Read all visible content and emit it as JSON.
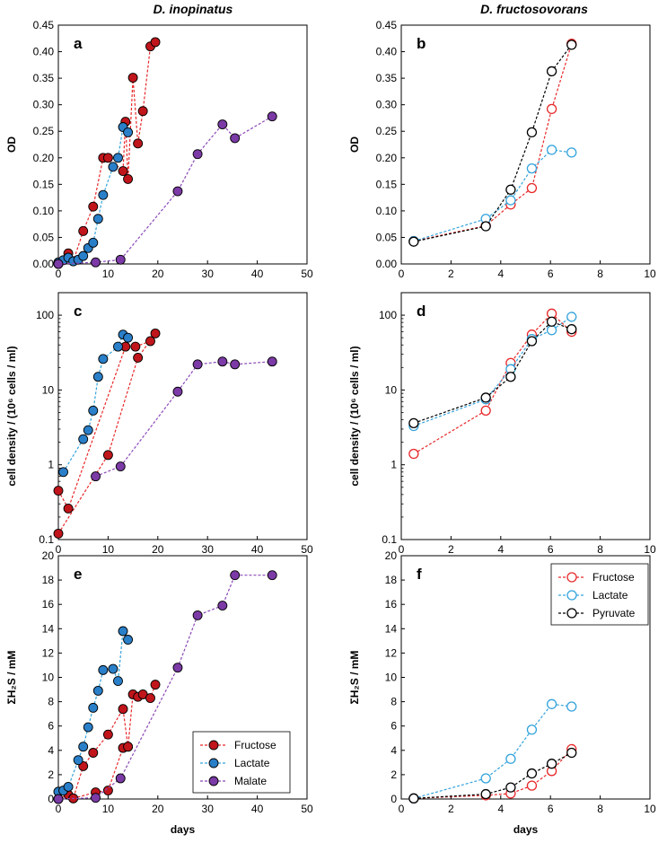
{
  "figure": {
    "left_title": "D. inopinatus",
    "right_title": "D. fructosovorans"
  },
  "colors": {
    "fructose_fill": "#c0151b",
    "fructose_line": "#e8282a",
    "lactate_fill": "#2a7fc9",
    "lactate_line": "#33a3dc",
    "malate_fill": "#7b3aa6",
    "malate_line": "#8a48b8",
    "pyruvate_line": "#000000"
  },
  "chart_data": [
    {
      "id": "a",
      "label": "a",
      "type": "line",
      "marker": "filled",
      "xlim": [
        0,
        50
      ],
      "xticks": [
        "0",
        "10",
        "20",
        "30",
        "40",
        "50"
      ],
      "ylim": [
        0,
        0.45
      ],
      "yticks": [
        "0.00",
        "0.05",
        "0.10",
        "0.15",
        "0.20",
        "0.25",
        "0.30",
        "0.35",
        "0.40",
        "0.45"
      ],
      "yscale": "linear",
      "ylabel": "OD",
      "xlabel": "",
      "series": [
        {
          "name": "Fructose",
          "color": "fructose",
          "x": [
            0,
            2,
            3,
            5,
            7,
            9,
            10,
            13,
            13.5,
            14,
            15,
            16,
            17,
            18.5,
            19.5
          ],
          "y": [
            0.0,
            0.02,
            0.005,
            0.062,
            0.108,
            0.2,
            0.2,
            0.175,
            0.268,
            0.16,
            0.351,
            0.227,
            0.288,
            0.41,
            0.418
          ]
        },
        {
          "name": "Fructose (2)",
          "color": "fructose",
          "x": [
            3.5,
            7,
            10,
            13,
            14.5,
            16,
            17,
            18.5,
            19.5
          ],
          "y": [
            0.0,
            0.02,
            0.018,
            0.0,
            0.0,
            0.0,
            0.0,
            0.0,
            0.0
          ],
          "hidden": true
        },
        {
          "name": "Lactate",
          "color": "lactate",
          "x": [
            0,
            1,
            2,
            3,
            4,
            5,
            6,
            7,
            8,
            9,
            11,
            12,
            13,
            14
          ],
          "y": [
            0.003,
            0.007,
            0.012,
            0.005,
            0.008,
            0.015,
            0.03,
            0.04,
            0.085,
            0.13,
            0.183,
            0.2,
            0.258,
            0.248
          ]
        },
        {
          "name": "Malate",
          "color": "malate",
          "x": [
            0,
            7.5,
            12.5,
            24,
            28,
            33,
            35.5,
            43
          ],
          "y": [
            0.0,
            0.003,
            0.008,
            0.137,
            0.207,
            0.263,
            0.237,
            0.278
          ]
        }
      ]
    },
    {
      "id": "b",
      "label": "b",
      "type": "line",
      "marker": "open",
      "xlim": [
        0,
        10
      ],
      "xticks": [
        "0",
        "2",
        "4",
        "6",
        "8",
        "10"
      ],
      "ylim": [
        0,
        0.45
      ],
      "yticks": [
        "0.00",
        "0.05",
        "0.10",
        "0.15",
        "0.20",
        "0.25",
        "0.30",
        "0.35",
        "0.40",
        "0.45"
      ],
      "yscale": "linear",
      "ylabel": "OD",
      "xlabel": "",
      "series": [
        {
          "name": "Fructose",
          "color": "fructose",
          "x": [
            0.5,
            3.4,
            4.4,
            5.25,
            6.05,
            6.85
          ],
          "y": [
            0.043,
            0.072,
            0.112,
            0.143,
            0.292,
            0.415
          ]
        },
        {
          "name": "Lactate",
          "color": "lactate",
          "x": [
            0.5,
            3.4,
            4.4,
            5.25,
            6.05,
            6.85
          ],
          "y": [
            0.043,
            0.085,
            0.12,
            0.18,
            0.215,
            0.21
          ]
        },
        {
          "name": "Pyruvate",
          "color": "pyruvate",
          "x": [
            0.5,
            3.4,
            4.4,
            5.25,
            6.05,
            6.85
          ],
          "y": [
            0.042,
            0.071,
            0.14,
            0.248,
            0.363,
            0.413
          ]
        }
      ]
    },
    {
      "id": "c",
      "label": "c",
      "type": "line",
      "marker": "filled",
      "xlim": [
        0,
        50
      ],
      "xticks": [
        "0",
        "10",
        "20",
        "30",
        "40",
        "50"
      ],
      "ylim": [
        0.1,
        200
      ],
      "yticks": [
        "0.1",
        "1",
        "10",
        "100"
      ],
      "ytick_values": [
        0.1,
        1,
        10,
        100
      ],
      "yscale": "log",
      "ylabel": "cell density / (10⁶ cells / ml)",
      "xlabel": "",
      "series": [
        {
          "name": "Fructose A",
          "color": "fructose",
          "x": [
            0,
            10,
            16,
            19.5
          ],
          "y": [
            0.12,
            1.35,
            27,
            57
          ]
        },
        {
          "name": "Fructose B",
          "color": "fructose",
          "x": [
            0,
            2,
            13.5,
            15.5,
            18.5
          ],
          "y": [
            0.45,
            0.26,
            38,
            38,
            45
          ]
        },
        {
          "name": "Lactate",
          "color": "lactate",
          "x": [
            1,
            5,
            6,
            7,
            8,
            9,
            12,
            13,
            14
          ],
          "y": [
            0.8,
            2.2,
            2.9,
            5.3,
            15,
            26,
            38,
            55,
            50
          ]
        },
        {
          "name": "Malate",
          "color": "malate",
          "x": [
            7.5,
            12.5,
            24,
            28,
            33,
            35.5,
            43
          ],
          "y": [
            0.7,
            0.95,
            9.5,
            22,
            24,
            22,
            24
          ]
        }
      ]
    },
    {
      "id": "d",
      "label": "d",
      "type": "line",
      "marker": "open",
      "xlim": [
        0,
        10
      ],
      "xticks": [
        "0",
        "2",
        "4",
        "6",
        "8",
        "10"
      ],
      "ylim": [
        0.1,
        200
      ],
      "yticks": [
        "0.1",
        "1",
        "10",
        "100"
      ],
      "ytick_values": [
        0.1,
        1,
        10,
        100
      ],
      "yscale": "log",
      "ylabel": "cell density / (10⁶ cells / ml)",
      "xlabel": "",
      "series": [
        {
          "name": "Fructose",
          "color": "fructose",
          "x": [
            0.5,
            3.4,
            4.4,
            5.25,
            6.05,
            6.85
          ],
          "y": [
            1.4,
            5.3,
            23,
            55,
            105,
            60
          ]
        },
        {
          "name": "Lactate",
          "color": "lactate",
          "x": [
            0.5,
            3.4,
            4.4,
            5.25,
            6.05,
            6.85
          ],
          "y": [
            3.3,
            7.5,
            19,
            48,
            63,
            95
          ]
        },
        {
          "name": "Pyruvate",
          "color": "pyruvate",
          "x": [
            0.5,
            3.4,
            4.4,
            5.25,
            6.05,
            6.85
          ],
          "y": [
            3.6,
            7.9,
            15,
            45,
            82,
            65
          ]
        }
      ]
    },
    {
      "id": "e",
      "label": "e",
      "type": "line",
      "marker": "filled",
      "xlim": [
        0,
        50
      ],
      "xticks": [
        "0",
        "10",
        "20",
        "30",
        "40",
        "50"
      ],
      "ylim": [
        0,
        20
      ],
      "yticks": [
        "0",
        "2",
        "4",
        "6",
        "8",
        "10",
        "12",
        "14",
        "16",
        "18",
        "20"
      ],
      "yscale": "linear",
      "ylabel": "ΣH₂S / mM",
      "xlabel": "days",
      "series": [
        {
          "name": "Fructose",
          "color": "fructose",
          "x": [
            0,
            2,
            3,
            5,
            7,
            10,
            13,
            14,
            15,
            16,
            17,
            18.5,
            19.5
          ],
          "y": [
            0.0,
            0.35,
            0.05,
            2.7,
            3.8,
            5.3,
            7.4,
            4.3,
            8.6,
            8.4,
            8.6,
            8.3,
            9.4
          ]
        },
        {
          "name": "Fructose (2)",
          "color": "fructose",
          "x": [
            3,
            7.5,
            10,
            13,
            14
          ],
          "y": [
            0.05,
            0.55,
            0.7,
            4.2,
            4.3
          ]
        },
        {
          "name": "Lactate",
          "color": "lactate",
          "x": [
            0,
            1,
            2,
            4,
            5,
            6,
            7,
            8,
            9,
            11,
            12,
            13,
            14
          ],
          "y": [
            0.6,
            0.7,
            1.0,
            3.2,
            4.3,
            5.9,
            7.5,
            8.9,
            10.6,
            10.7,
            9.7,
            13.8,
            13.1
          ]
        },
        {
          "name": "Malate",
          "color": "malate",
          "x": [
            0,
            7.5,
            12.5,
            24,
            28,
            33,
            35.5,
            43
          ],
          "y": [
            0.0,
            0.1,
            1.7,
            10.8,
            15.1,
            15.9,
            18.4,
            18.4
          ]
        }
      ],
      "legend": {
        "entries": [
          "Fructose",
          "Lactate",
          "Malate"
        ],
        "placement": "bottom-right"
      }
    },
    {
      "id": "f",
      "label": "f",
      "type": "line",
      "marker": "open",
      "xlim": [
        0,
        10
      ],
      "xticks": [
        "0",
        "2",
        "4",
        "6",
        "8",
        "10"
      ],
      "ylim": [
        0,
        20
      ],
      "yticks": [
        "0",
        "2",
        "4",
        "6",
        "8",
        "10",
        "12",
        "14",
        "16",
        "18",
        "20"
      ],
      "yscale": "linear",
      "ylabel": "ΣH₂S / mM",
      "xlabel": "days",
      "series": [
        {
          "name": "Fructose",
          "color": "fructose",
          "x": [
            0.5,
            3.4,
            4.4,
            5.25,
            6.05,
            6.85
          ],
          "y": [
            0.05,
            0.3,
            0.45,
            1.1,
            2.3,
            4.1
          ]
        },
        {
          "name": "Lactate",
          "color": "lactate",
          "x": [
            0.5,
            3.4,
            4.4,
            5.25,
            6.05,
            6.85
          ],
          "y": [
            0.05,
            1.7,
            3.3,
            5.7,
            7.8,
            7.6
          ]
        },
        {
          "name": "Pyruvate",
          "color": "pyruvate",
          "x": [
            0.5,
            3.4,
            4.4,
            5.25,
            6.05,
            6.85
          ],
          "y": [
            0.05,
            0.4,
            0.95,
            2.1,
            2.9,
            3.8
          ]
        }
      ],
      "legend": {
        "entries": [
          "Fructose",
          "Lactate",
          "Pyruvate"
        ],
        "placement": "top-right"
      }
    }
  ]
}
